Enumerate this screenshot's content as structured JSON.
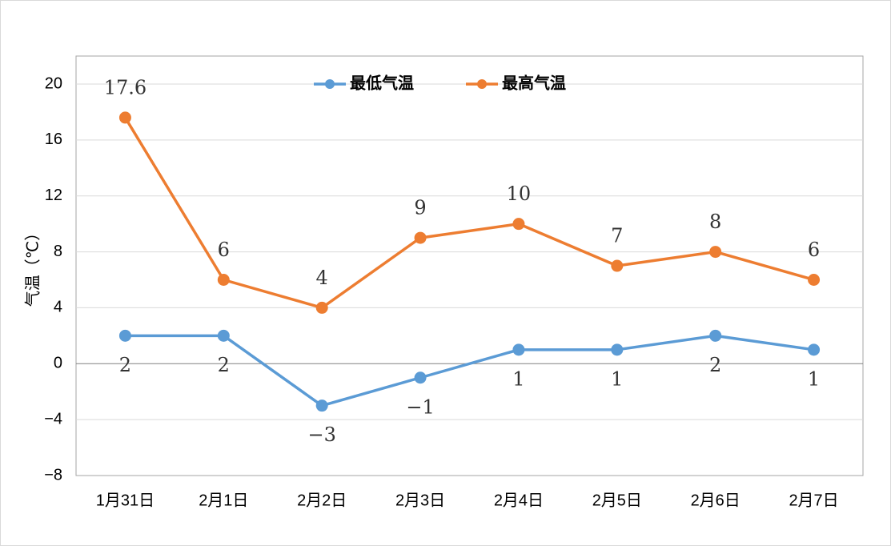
{
  "chart_data": {
    "type": "line",
    "title": "",
    "xlabel": "",
    "ylabel": "气温（℃）",
    "categories": [
      "1月31日",
      "2月1日",
      "2月2日",
      "2月3日",
      "2月4日",
      "2月5日",
      "2月6日",
      "2月7日"
    ],
    "series": [
      {
        "name": "最低气温",
        "color": "#5b9bd5",
        "values": [
          2,
          2,
          -3,
          -1,
          1,
          1,
          2,
          1
        ],
        "labels": [
          "2",
          "2",
          "−3",
          "−1",
          "1",
          "1",
          "2",
          "1"
        ]
      },
      {
        "name": "最高气温",
        "color": "#ed7d31",
        "values": [
          17.6,
          6,
          4,
          9,
          10,
          7,
          8,
          6
        ],
        "labels": [
          "17.6",
          "6",
          "4",
          "9",
          "10",
          "7",
          "8",
          "6"
        ]
      }
    ],
    "ylim": [
      -8,
      20
    ],
    "yticks": [
      -8,
      -4,
      0,
      4,
      8,
      12,
      16,
      20
    ],
    "ytick_labels": [
      "−8",
      "−4",
      "0",
      "4",
      "8",
      "12",
      "16",
      "20"
    ],
    "grid": true,
    "legend": "top"
  }
}
